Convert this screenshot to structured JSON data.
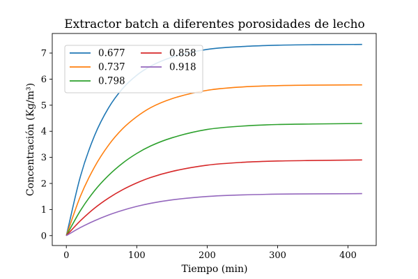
{
  "chart_data": {
    "type": "line",
    "title": "Extractor batch a diferentes porosidades de lecho",
    "xlabel": "Tiempo (min)",
    "ylabel": "Concentración (Kg/m³)",
    "xlim": [
      -20,
      440
    ],
    "ylim": [
      -0.38,
      7.75
    ],
    "xticks": [
      0,
      100,
      200,
      300,
      400
    ],
    "yticks": [
      0,
      1,
      2,
      3,
      4,
      5,
      6,
      7
    ],
    "grid": false,
    "legend_placement": "top-left",
    "legend_columns": 2,
    "series": [
      {
        "name": "0.677",
        "color": "#1f77b4",
        "x": [
          0,
          20,
          40,
          60,
          80,
          100,
          120,
          150,
          200,
          250,
          300,
          350,
          420
        ],
        "y": [
          0,
          2.27,
          3.83,
          4.9,
          5.64,
          6.15,
          6.5,
          6.84,
          7.14,
          7.25,
          7.3,
          7.32,
          7.33
        ]
      },
      {
        "name": "0.737",
        "color": "#ff7f0e",
        "x": [
          0,
          20,
          40,
          60,
          80,
          100,
          120,
          150,
          200,
          250,
          300,
          350,
          420
        ],
        "y": [
          0,
          1.51,
          2.63,
          3.47,
          4.1,
          4.56,
          4.91,
          5.25,
          5.57,
          5.7,
          5.75,
          5.77,
          5.78
        ]
      },
      {
        "name": "0.798",
        "color": "#2ca02c",
        "x": [
          0,
          20,
          40,
          60,
          80,
          100,
          120,
          150,
          200,
          250,
          300,
          350,
          420
        ],
        "y": [
          0,
          0.96,
          1.72,
          2.31,
          2.78,
          3.15,
          3.44,
          3.75,
          4.07,
          4.2,
          4.26,
          4.28,
          4.3
        ]
      },
      {
        "name": "0.858",
        "color": "#d62728",
        "x": [
          0,
          20,
          40,
          60,
          80,
          100,
          120,
          150,
          200,
          250,
          300,
          350,
          420
        ],
        "y": [
          0,
          0.57,
          1.05,
          1.44,
          1.76,
          2.02,
          2.23,
          2.46,
          2.7,
          2.81,
          2.86,
          2.88,
          2.9
        ]
      },
      {
        "name": "0.918",
        "color": "#9467bd",
        "x": [
          0,
          20,
          40,
          60,
          80,
          100,
          120,
          150,
          200,
          250,
          300,
          350,
          420
        ],
        "y": [
          0,
          0.31,
          0.57,
          0.79,
          0.97,
          1.12,
          1.24,
          1.37,
          1.5,
          1.56,
          1.59,
          1.6,
          1.61
        ]
      }
    ]
  }
}
